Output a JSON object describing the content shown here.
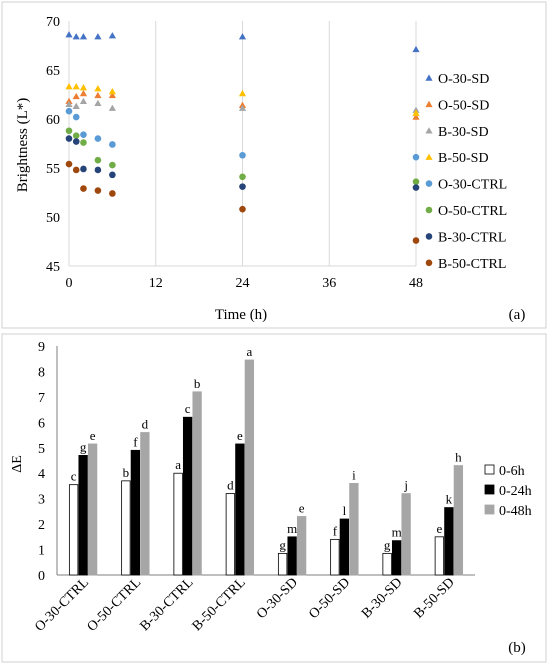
{
  "chart_data": [
    {
      "type": "scatter",
      "panel_label": "(a)",
      "xlabel": "Time (h)",
      "ylabel": "Brightness (L*)",
      "xlim": [
        0,
        48
      ],
      "ylim": [
        45,
        70
      ],
      "xticks": [
        0,
        12,
        24,
        36,
        48
      ],
      "yticks": [
        45,
        50,
        55,
        60,
        65,
        70
      ],
      "grid": "vertical",
      "legend_position": "right",
      "series": [
        {
          "name": "O-30-SD",
          "marker": "triangle",
          "color": "#4472C4",
          "points": [
            [
              0,
              68.6
            ],
            [
              1,
              68.4
            ],
            [
              2,
              68.4
            ],
            [
              4,
              68.4
            ],
            [
              6,
              68.5
            ],
            [
              24,
              68.4
            ],
            [
              48,
              67.1
            ]
          ]
        },
        {
          "name": "O-50-SD",
          "marker": "triangle",
          "color": "#ED7D31",
          "points": [
            [
              0,
              61.8
            ],
            [
              1,
              62.3
            ],
            [
              2,
              62.6
            ],
            [
              4,
              62.4
            ],
            [
              6,
              62.4
            ],
            [
              24,
              61.4
            ],
            [
              48,
              60.2
            ]
          ]
        },
        {
          "name": "B-30-SD",
          "marker": "triangle",
          "color": "#A5A5A5",
          "points": [
            [
              0,
              61.5
            ],
            [
              1,
              61.3
            ],
            [
              2,
              61.8
            ],
            [
              4,
              61.6
            ],
            [
              6,
              61.1
            ],
            [
              24,
              61.1
            ],
            [
              48,
              60.9
            ]
          ]
        },
        {
          "name": "B-50-SD",
          "marker": "triangle",
          "color": "#FFC000",
          "points": [
            [
              0,
              63.3
            ],
            [
              1,
              63.3
            ],
            [
              2,
              63.2
            ],
            [
              4,
              63.1
            ],
            [
              6,
              62.8
            ],
            [
              24,
              62.6
            ],
            [
              48,
              60.6
            ]
          ]
        },
        {
          "name": "O-30-CTRL",
          "marker": "circle",
          "color": "#5B9BD5",
          "points": [
            [
              0,
              60.8
            ],
            [
              1,
              60.2
            ],
            [
              2,
              58.4
            ],
            [
              4,
              58.0
            ],
            [
              6,
              57.4
            ],
            [
              24,
              56.3
            ],
            [
              48,
              56.1
            ]
          ]
        },
        {
          "name": "O-50-CTRL",
          "marker": "circle",
          "color": "#70AD47",
          "points": [
            [
              0,
              58.8
            ],
            [
              1,
              58.3
            ],
            [
              2,
              57.6
            ],
            [
              4,
              55.8
            ],
            [
              6,
              55.3
            ],
            [
              24,
              54.1
            ],
            [
              48,
              53.6
            ]
          ]
        },
        {
          "name": "B-30-CTRL",
          "marker": "circle",
          "color": "#264478",
          "points": [
            [
              0,
              58.0
            ],
            [
              1,
              57.7
            ],
            [
              2,
              54.9
            ],
            [
              4,
              54.8
            ],
            [
              6,
              54.3
            ],
            [
              24,
              53.1
            ],
            [
              48,
              53.0
            ]
          ]
        },
        {
          "name": "B-50-CTRL",
          "marker": "circle",
          "color": "#9E480E",
          "points": [
            [
              0,
              55.4
            ],
            [
              1,
              54.8
            ],
            [
              2,
              52.9
            ],
            [
              4,
              52.7
            ],
            [
              6,
              52.4
            ],
            [
              24,
              50.8
            ],
            [
              48,
              47.6
            ]
          ]
        }
      ]
    },
    {
      "type": "bar",
      "panel_label": "(b)",
      "ylabel": "ΔE",
      "ylim": [
        0,
        9
      ],
      "yticks": [
        0,
        1,
        2,
        3,
        4,
        5,
        6,
        7,
        8,
        9
      ],
      "grid": false,
      "legend_position": "right",
      "categories": [
        "O-30-CTRL",
        "O-50-CTRL",
        "B-30-CTRL",
        "B-50-CTRL",
        "O-30-SD",
        "O-50-SD",
        "B-30-SD",
        "B-50-SD"
      ],
      "series": [
        {
          "name": "0-6h",
          "fill": "#FFFFFF",
          "stroke": "#000000",
          "values": [
            3.55,
            3.7,
            4.0,
            3.2,
            0.85,
            1.4,
            0.85,
            1.5
          ],
          "labels": [
            "c",
            "b",
            "a",
            "d",
            "g",
            "f",
            "g",
            "e"
          ]
        },
        {
          "name": "0-24h",
          "fill": "#000000",
          "stroke": "#000000",
          "values": [
            4.7,
            4.9,
            6.2,
            5.15,
            1.5,
            2.2,
            1.35,
            2.65
          ],
          "labels": [
            "g",
            "f",
            "c",
            "e",
            "m",
            "l",
            "m",
            "k"
          ]
        },
        {
          "name": "0-48h",
          "fill": "#A6A6A6",
          "stroke": "#A6A6A6",
          "values": [
            5.15,
            5.6,
            7.2,
            8.45,
            2.3,
            3.6,
            3.2,
            4.3
          ],
          "labels": [
            "e",
            "d",
            "b",
            "a",
            "e",
            "i",
            "j",
            "h"
          ]
        }
      ]
    }
  ]
}
